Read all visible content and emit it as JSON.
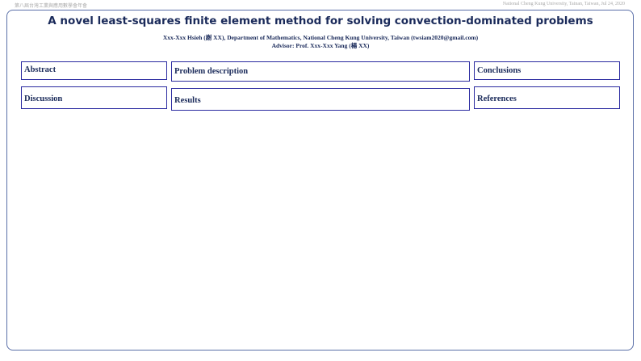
{
  "header": {
    "left": "第八屆台灣工業與應用數學會年會",
    "right": "National Cheng Kung University, Tainan, Taiwan, Jul 24, 2020"
  },
  "title": "A novel least-squares finite element method for solving convection-dominated problems",
  "author": "Xxx-Xxx Hsieh (謝 XX), Department of Mathematics, National Cheng Kung University, Taiwan (twsiam2020@gmail.com)",
  "advisor": "Advisor: Prof. Xxx-Xxx Yang (楊 XX)",
  "sections": [
    "Abstract",
    "Problem description",
    "Conclusions",
    "Discussion",
    "Results",
    "References"
  ]
}
